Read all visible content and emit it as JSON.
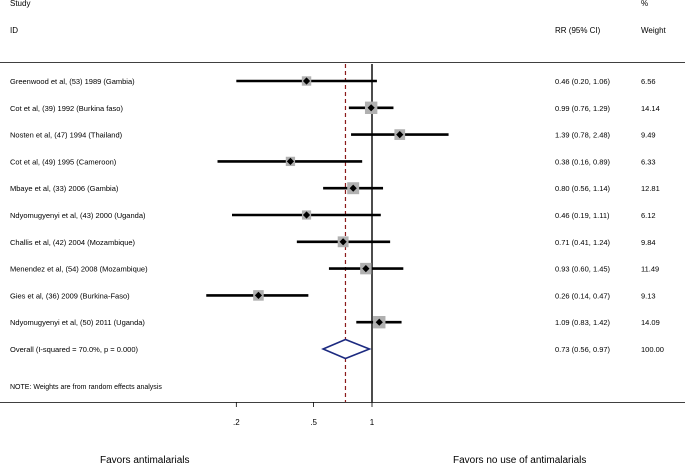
{
  "chart_data": {
    "type": "forest",
    "headers": {
      "study_line1": "Study",
      "study_line2": "ID",
      "estimate": "RR (95% CI)",
      "weight_line1": "%",
      "weight_line2": "Weight"
    },
    "studies": [
      {
        "label": "Greenwood et al, (53) 1989  (Gambia)",
        "rr": 0.46,
        "lo": 0.2,
        "hi": 1.06,
        "ci_text": "0.46 (0.20, 1.06)",
        "weight": 6.56,
        "weight_text": "6.56"
      },
      {
        "label": "Cot et al, (39) 1992  (Burkina faso)",
        "rr": 0.99,
        "lo": 0.76,
        "hi": 1.29,
        "ci_text": "0.99 (0.76, 1.29)",
        "weight": 14.14,
        "weight_text": "14.14"
      },
      {
        "label": "Nosten et al, (47) 1994  (Thailand)",
        "rr": 1.39,
        "lo": 0.78,
        "hi": 2.48,
        "ci_text": "1.39 (0.78, 2.48)",
        "weight": 9.49,
        "weight_text": "9.49"
      },
      {
        "label": "Cot et al, (49) 1995 (Cameroon)",
        "rr": 0.38,
        "lo": 0.16,
        "hi": 0.89,
        "ci_text": "0.38 (0.16, 0.89)",
        "weight": 6.33,
        "weight_text": "6.33"
      },
      {
        "label": "Mbaye et al, (33) 2006  (Gambia)",
        "rr": 0.8,
        "lo": 0.56,
        "hi": 1.14,
        "ci_text": "0.80 (0.56, 1.14)",
        "weight": 12.81,
        "weight_text": "12.81"
      },
      {
        "label": "Ndyomugyenyi et al, (43) 2000 (Uganda)",
        "rr": 0.46,
        "lo": 0.19,
        "hi": 1.11,
        "ci_text": "0.46 (0.19, 1.11)",
        "weight": 6.12,
        "weight_text": "6.12"
      },
      {
        "label": "Challis et al, (42) 2004  (Mozambique)",
        "rr": 0.71,
        "lo": 0.41,
        "hi": 1.24,
        "ci_text": "0.71 (0.41, 1.24)",
        "weight": 9.84,
        "weight_text": "9.84"
      },
      {
        "label": "Menendez et al, (54) 2008  (Mozambique)",
        "rr": 0.93,
        "lo": 0.6,
        "hi": 1.45,
        "ci_text": "0.93 (0.60, 1.45)",
        "weight": 11.49,
        "weight_text": "11.49"
      },
      {
        "label": "Gies et al, (36) 2009  (Burkina-Faso)",
        "rr": 0.26,
        "lo": 0.14,
        "hi": 0.47,
        "ci_text": "0.26 (0.14, 0.47)",
        "weight": 9.13,
        "weight_text": "9.13"
      },
      {
        "label": "Ndyomugyenyi et al, (50) 2011  (Uganda)",
        "rr": 1.09,
        "lo": 0.83,
        "hi": 1.42,
        "ci_text": "1.09 (0.83, 1.42)",
        "weight": 14.09,
        "weight_text": "14.09"
      }
    ],
    "overall": {
      "label": "Overall  (I-squared = 70.0%, p = 0.000)",
      "rr": 0.73,
      "lo": 0.56,
      "hi": 0.97,
      "ci_text": "0.73 (0.56, 0.97)",
      "weight_text": "100.00"
    },
    "note": "NOTE: Weights are from random effects analysis",
    "x_scale": "log",
    "x_ticks": [
      {
        "value": 0.2,
        "label": ".2"
      },
      {
        "value": 0.5,
        "label": ".5"
      },
      {
        "value": 1,
        "label": "1"
      }
    ],
    "null_line": 1,
    "xlim": [
      0.13,
      2.6
    ],
    "footer_left": "Favors antimalarials",
    "footer_right": "Favors no use of antimalarials",
    "colors": {
      "ci_line": "#000000",
      "weight_box": "#b0b0b0",
      "point": "#000000",
      "diamond": "#1c2a80",
      "overall_line": "#8b1a1a",
      "axis": "#000000"
    }
  }
}
